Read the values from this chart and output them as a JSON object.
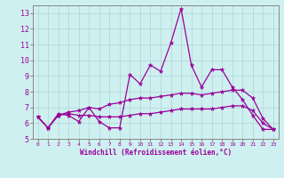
{
  "xlabel": "Windchill (Refroidissement éolien,°C)",
  "background_color": "#cff0f0",
  "grid_color": "#aed4d4",
  "line_color": "#990099",
  "spine_color": "#888888",
  "x_values": [
    0,
    1,
    2,
    3,
    4,
    5,
    6,
    7,
    8,
    9,
    10,
    11,
    12,
    13,
    14,
    15,
    16,
    17,
    18,
    19,
    20,
    21,
    22,
    23
  ],
  "series1": [
    6.4,
    5.7,
    6.6,
    6.5,
    6.1,
    7.0,
    6.1,
    5.7,
    5.7,
    9.1,
    8.5,
    9.7,
    9.3,
    11.1,
    13.3,
    9.7,
    8.3,
    9.4,
    9.4,
    8.3,
    7.5,
    6.5,
    5.6,
    5.6
  ],
  "series2": [
    6.4,
    5.7,
    6.5,
    6.7,
    6.8,
    7.0,
    6.9,
    7.2,
    7.3,
    7.5,
    7.6,
    7.6,
    7.7,
    7.8,
    7.9,
    7.9,
    7.8,
    7.9,
    8.0,
    8.1,
    8.1,
    7.6,
    6.3,
    5.6
  ],
  "series3": [
    6.4,
    5.7,
    6.5,
    6.6,
    6.5,
    6.5,
    6.4,
    6.4,
    6.4,
    6.5,
    6.6,
    6.6,
    6.7,
    6.8,
    6.9,
    6.9,
    6.9,
    6.9,
    7.0,
    7.1,
    7.1,
    6.8,
    6.0,
    5.6
  ],
  "ylim": [
    5,
    13.5
  ],
  "xlim": [
    -0.5,
    23.5
  ],
  "yticks": [
    5,
    6,
    7,
    8,
    9,
    10,
    11,
    12,
    13
  ],
  "xticks": [
    0,
    1,
    2,
    3,
    4,
    5,
    6,
    7,
    8,
    9,
    10,
    11,
    12,
    13,
    14,
    15,
    16,
    17,
    18,
    19,
    20,
    21,
    22,
    23
  ],
  "xlabel_fontsize": 5.5,
  "ytick_fontsize": 6.0,
  "xtick_fontsize": 4.5,
  "marker_size": 3.5,
  "linewidth": 0.9
}
